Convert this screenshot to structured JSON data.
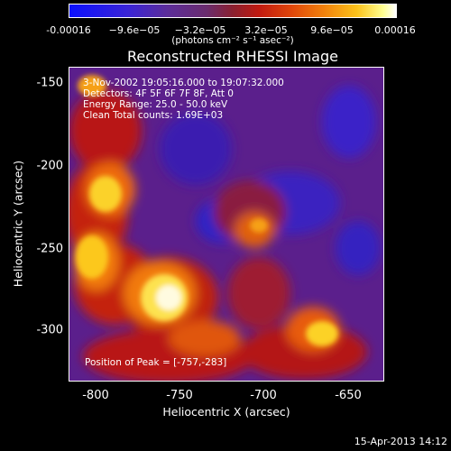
{
  "colorbar": {
    "ticks": [
      "-0.00016",
      "−9.6e−05",
      "−3.2e−05",
      "3.2e−05",
      "9.6e−05",
      "0.00016"
    ],
    "units": "(photons cm⁻² s⁻¹ asec⁻²)"
  },
  "title": "Reconstructed RHESSI Image",
  "info": {
    "time_range": "3-Nov-2002 19:05:16.000 to 19:07:32.000",
    "detectors": "Detectors: 4F 5F 6F 7F 8F, Att 0",
    "energy": "Energy Range: 25.0 - 50.0 keV",
    "method": "Clean    Total counts: 1.69E+03",
    "peak": "Position of Peak = [-757,-283]"
  },
  "axes": {
    "xlabel": "Heliocentric X (arcsec)",
    "ylabel": "Heliocentric Y (arcsec)",
    "xticks": [
      "-800",
      "-750",
      "-700",
      "-650"
    ],
    "yticks": [
      "-150",
      "-200",
      "-250",
      "-300"
    ]
  },
  "timestamp": "15-Apr-2013 14:12"
}
